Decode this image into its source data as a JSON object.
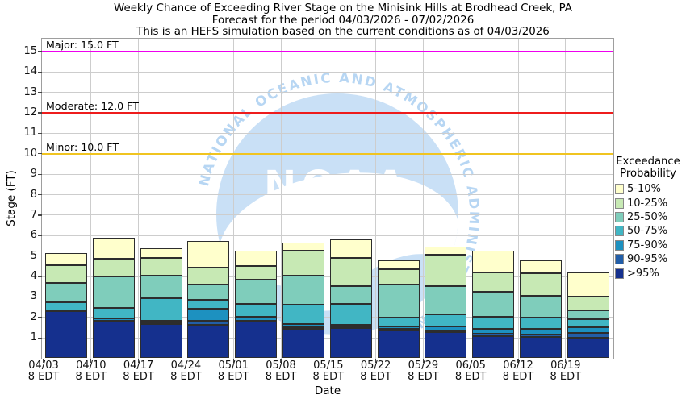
{
  "title": {
    "line1": "Weekly Chance of Exceeding River Stage on the Minisink Hills at Brodhead Creek, PA",
    "line2": "Forecast for the period 04/03/2026 - 07/02/2026",
    "line3": "This is an HEFS simulation based on the current conditions as of 04/03/2026"
  },
  "axes": {
    "y_label": "Stage (FT)",
    "x_label": "Date",
    "y_ticks": [
      1,
      2,
      3,
      4,
      5,
      6,
      7,
      8,
      9,
      10,
      11,
      12,
      13,
      14,
      15
    ],
    "x_tick_sublabel": "8 EDT"
  },
  "legend": {
    "title_line1": "Exceedance",
    "title_line2": "Probability",
    "entries": [
      {
        "label": "5-10%",
        "color": "#ffffcc"
      },
      {
        "label": "10-25%",
        "color": "#c7e9b4"
      },
      {
        "label": "25-50%",
        "color": "#7fcdbb"
      },
      {
        "label": "50-75%",
        "color": "#41b6c4"
      },
      {
        "label": "75-90%",
        "color": "#1d91c0"
      },
      {
        "label": "90-95%",
        "color": "#225ea8"
      },
      {
        "label": ">95%",
        "color": "#15308e"
      }
    ]
  },
  "watermark": {
    "arc_text": "NATIONAL OCEANIC AND ATMOSPHERIC ADMINISTRATION",
    "center_text": "NOAA"
  },
  "chart_data": {
    "type": "bar",
    "stacked": true,
    "title": "Weekly Chance of Exceeding River Stage on the Minisink Hills at Brodhead Creek, PA",
    "xlabel": "Date",
    "ylabel": "Stage (FT)",
    "ylim": [
      0,
      15.63
    ],
    "grid": true,
    "legend_position": "right",
    "categories": [
      "04/03",
      "04/10",
      "04/17",
      "04/24",
      "05/01",
      "05/08",
      "05/15",
      "05/22",
      "05/29",
      "06/05",
      "06/12",
      "06/19"
    ],
    "category_time": "8 EDT",
    "series_note": "cumulative_top = stage (FT) at top of each stacked probability band, bottom-to-top stacking order",
    "series": [
      {
        "name": ">95%",
        "color": "#15308e",
        "cumulative_top": [
          2.33,
          1.79,
          1.67,
          1.62,
          1.78,
          1.45,
          1.47,
          1.36,
          1.27,
          1.09,
          1.03,
          0.99
        ]
      },
      {
        "name": "90-95%",
        "color": "#225ea8",
        "cumulative_top": [
          2.34,
          1.83,
          1.73,
          1.83,
          1.82,
          1.53,
          1.51,
          1.43,
          1.35,
          1.2,
          1.16,
          1.25
        ]
      },
      {
        "name": "75-90%",
        "color": "#1d91c0",
        "cumulative_top": [
          2.36,
          1.95,
          1.82,
          2.41,
          2.02,
          1.69,
          1.62,
          1.56,
          1.56,
          1.43,
          1.43,
          1.52
        ]
      },
      {
        "name": "50-75%",
        "color": "#41b6c4",
        "cumulative_top": [
          2.72,
          2.47,
          2.95,
          2.87,
          2.67,
          2.61,
          2.67,
          2.0,
          2.15,
          2.02,
          1.99,
          1.91
        ]
      },
      {
        "name": "25-50%",
        "color": "#7fcdbb",
        "cumulative_top": [
          3.7,
          4.01,
          4.03,
          3.61,
          3.85,
          4.05,
          3.52,
          3.61,
          3.52,
          3.26,
          3.07,
          2.34
        ]
      },
      {
        "name": "10-25%",
        "color": "#c7e9b4",
        "cumulative_top": [
          4.55,
          4.88,
          4.9,
          4.45,
          4.51,
          5.26,
          4.9,
          4.34,
          5.06,
          4.18,
          4.14,
          3.0
        ]
      },
      {
        "name": "5-10%",
        "color": "#ffffcc",
        "cumulative_top": [
          5.15,
          5.9,
          5.38,
          5.73,
          5.27,
          5.65,
          5.82,
          4.8,
          5.45,
          5.26,
          4.77,
          4.18
        ]
      }
    ],
    "thresholds": [
      {
        "name": "Major",
        "label": "Major: 15.0 FT",
        "value": 15.0,
        "color": "#ee00ee"
      },
      {
        "name": "Moderate",
        "label": "Moderate: 12.0 FT",
        "value": 12.0,
        "color": "#ee1c1c"
      },
      {
        "name": "Minor",
        "label": "Minor: 10.0 FT",
        "value": 10.0,
        "color": "#f0c420"
      }
    ]
  }
}
